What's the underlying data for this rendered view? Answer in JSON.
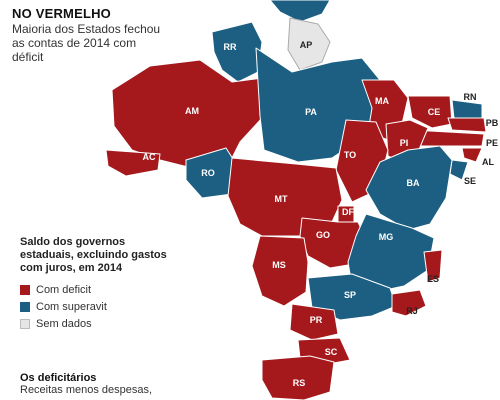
{
  "title": "NO VERMELHO",
  "subtitle": "Maioria dos Estados fechou as contas de 2014 com déficit",
  "legend": {
    "title": "Saldo dos governos estaduais, excluindo gastos com juros, em 2014",
    "items": [
      {
        "key": "deficit",
        "label": "Com deficit",
        "color": "#a5191d"
      },
      {
        "key": "surplus",
        "label": "Com superavit",
        "color": "#1c5f82"
      },
      {
        "key": "nodata",
        "label": "Sem dados",
        "color": "#e6e6e6"
      }
    ]
  },
  "footer": {
    "title": "Os deficitários",
    "text": "Receitas menos despesas,"
  },
  "states": [
    {
      "code": "RR",
      "status": "surplus"
    },
    {
      "code": "AP",
      "status": "nodata"
    },
    {
      "code": "AM",
      "status": "deficit"
    },
    {
      "code": "PA",
      "status": "surplus"
    },
    {
      "code": "MA",
      "status": "deficit"
    },
    {
      "code": "CE",
      "status": "deficit"
    },
    {
      "code": "RN",
      "status": "surplus"
    },
    {
      "code": "PB",
      "status": "deficit"
    },
    {
      "code": "PE",
      "status": "deficit"
    },
    {
      "code": "AL",
      "status": "deficit"
    },
    {
      "code": "SE",
      "status": "surplus"
    },
    {
      "code": "PI",
      "status": "deficit"
    },
    {
      "code": "AC",
      "status": "deficit"
    },
    {
      "code": "RO",
      "status": "surplus"
    },
    {
      "code": "TO",
      "status": "deficit"
    },
    {
      "code": "BA",
      "status": "surplus"
    },
    {
      "code": "MT",
      "status": "deficit"
    },
    {
      "code": "DF",
      "status": "deficit"
    },
    {
      "code": "GO",
      "status": "deficit"
    },
    {
      "code": "MG",
      "status": "surplus"
    },
    {
      "code": "ES",
      "status": "deficit"
    },
    {
      "code": "MS",
      "status": "deficit"
    },
    {
      "code": "SP",
      "status": "surplus"
    },
    {
      "code": "RJ",
      "status": "deficit"
    },
    {
      "code": "PR",
      "status": "deficit"
    },
    {
      "code": "SC",
      "status": "deficit"
    },
    {
      "code": "RS",
      "status": "deficit"
    }
  ]
}
